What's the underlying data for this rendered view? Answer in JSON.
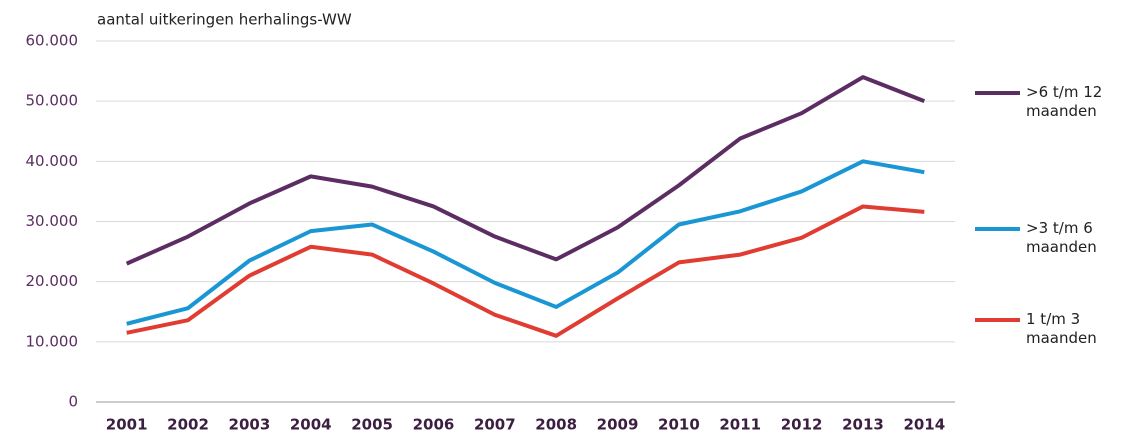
{
  "chart_data": {
    "type": "line",
    "title": "aantal  uitkeringen herhalings-WW",
    "categories": [
      "2001",
      "2002",
      "2003",
      "2004",
      "2005",
      "2006",
      "2007",
      "2008",
      "2009",
      "2010",
      "2011",
      "2012",
      "2013",
      "2014"
    ],
    "series": [
      {
        "name": ">6 t/m 12 maanden",
        "color": "#5c2d62",
        "values": [
          23000,
          27500,
          33000,
          37500,
          35800,
          32500,
          27500,
          23700,
          29000,
          36000,
          43800,
          48000,
          54000,
          50000
        ]
      },
      {
        "name": ">3 t/m 6 maanden",
        "color": "#1a96d4",
        "values": [
          13000,
          15600,
          23500,
          28400,
          29500,
          25000,
          19800,
          15800,
          21500,
          29500,
          31700,
          35000,
          40000,
          38200
        ]
      },
      {
        "name": "1 t/m 3 maanden",
        "color": "#e03c31",
        "values": [
          11500,
          13600,
          21000,
          25800,
          24500,
          19700,
          14500,
          11000,
          17200,
          23200,
          24500,
          27300,
          32500,
          31600
        ]
      }
    ],
    "ylim": [
      0,
      60000
    ],
    "yticks": [
      0,
      {
        "value": 10000,
        "label": "10.000"
      },
      {
        "value": 20000,
        "label": "20.000"
      },
      {
        "value": 30000,
        "label": "30.000"
      },
      {
        "value": 40000,
        "label": "40.000"
      },
      {
        "value": 50000,
        "label": "50.000"
      },
      {
        "value": 60000,
        "label": "60.000"
      }
    ],
    "grid": true,
    "legend": "right"
  }
}
